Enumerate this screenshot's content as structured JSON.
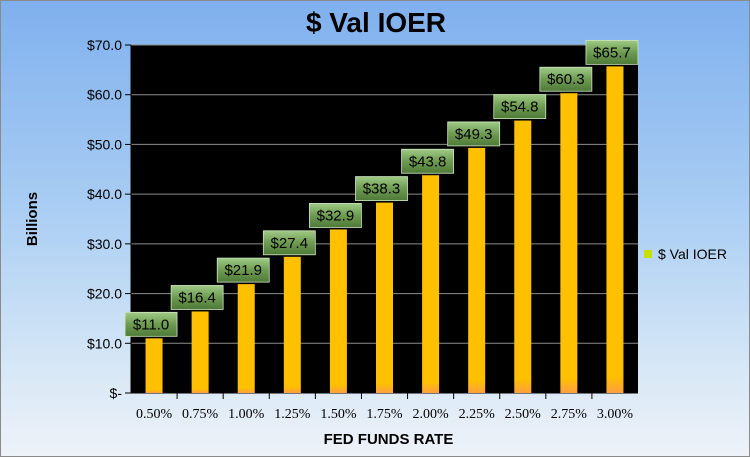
{
  "chart_data": {
    "type": "bar",
    "title": "$ Val IOER",
    "xlabel": "FED FUNDS RATE",
    "ylabel": "Billions",
    "categories": [
      "0.50%",
      "0.75%",
      "1.00%",
      "1.25%",
      "1.50%",
      "1.75%",
      "2.00%",
      "2.25%",
      "2.50%",
      "2.75%",
      "3.00%"
    ],
    "series": [
      {
        "name": "$ Val IOER",
        "values": [
          11.0,
          16.4,
          21.9,
          27.4,
          32.9,
          38.3,
          43.8,
          49.3,
          54.8,
          60.3,
          65.7
        ],
        "data_labels": [
          "$11.0",
          "$16.4",
          "$21.9",
          "$27.4",
          "$32.9",
          "$38.3",
          "$43.8",
          "$49.3",
          "$54.8",
          "$60.3",
          "$65.7"
        ]
      }
    ],
    "ylim": [
      0,
      70
    ],
    "yticks": [
      0,
      10,
      20,
      30,
      40,
      50,
      60,
      70
    ],
    "ytick_labels": [
      "$-",
      "$10.0",
      "$20.0",
      "$30.0",
      "$40.0",
      "$50.0",
      "$60.0",
      "$70.0"
    ],
    "grid": true,
    "legend_position": "right",
    "colors": {
      "bar": "#ffc000",
      "bar_base": "#ff9f40",
      "plot_bg": "#000000",
      "label_box": "#6e9b52",
      "gridline": "#8c8c8c",
      "legend_swatch": "#c8e000"
    }
  }
}
